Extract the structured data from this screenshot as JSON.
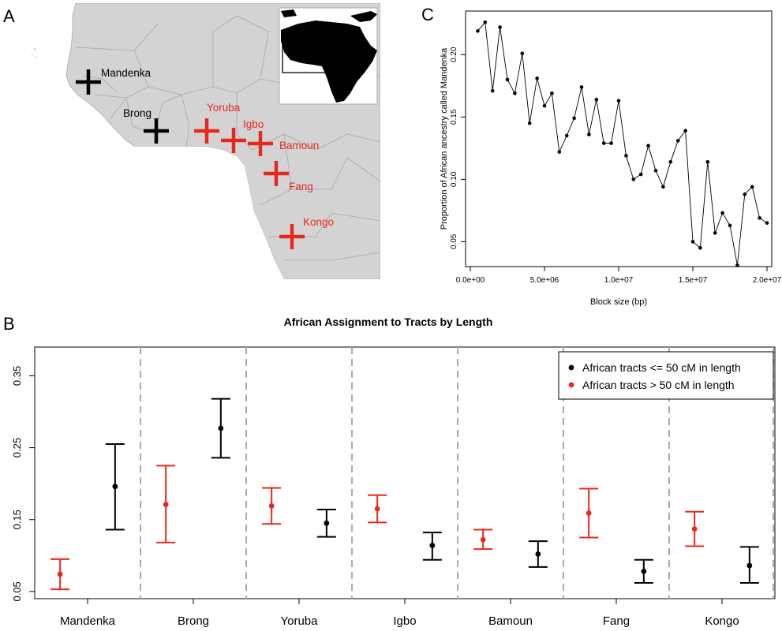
{
  "panel_labels": {
    "a": "A",
    "b": "B",
    "c": "C"
  },
  "colors": {
    "black": "#000000",
    "red": "#e8281e",
    "map_land": "#d3d3d3",
    "map_border": "#a8a8a8",
    "grid_dash": "#aaaaaa",
    "inset_land": "#000000"
  },
  "map": {
    "markers": [
      {
        "name": "Mandenka",
        "color": "black"
      },
      {
        "name": "Brong",
        "color": "black"
      },
      {
        "name": "Yoruba",
        "color": "red"
      },
      {
        "name": "Igbo",
        "color": "red"
      },
      {
        "name": "Bamoun",
        "color": "red"
      },
      {
        "name": "Fang",
        "color": "red"
      },
      {
        "name": "Kongo",
        "color": "red"
      }
    ]
  },
  "chart_data": [
    {
      "panel": "C",
      "type": "line",
      "title": "",
      "xlabel": "Block size (bp)",
      "ylabel": "Proportion of African ancestry called Mandenka",
      "xlim": [
        0,
        20000000
      ],
      "ylim": [
        0.03,
        0.235
      ],
      "xticks": [
        0,
        5000000,
        10000000,
        15000000,
        20000000
      ],
      "xtick_labels": [
        "0.0e+00",
        "5.0e+06",
        "1.0e+07",
        "1.5e+07",
        "2.0e+07"
      ],
      "yticks": [
        0.05,
        0.1,
        0.15,
        0.2
      ],
      "ytick_labels": [
        "0.05",
        "0.10",
        "0.15",
        "0.20"
      ],
      "grid": false,
      "x": [
        500000,
        1000000,
        1500000,
        2000000,
        2500000,
        3000000,
        3500000,
        4000000,
        4500000,
        5000000,
        5500000,
        6000000,
        6500000,
        7000000,
        7500000,
        8000000,
        8500000,
        9000000,
        9500000,
        10000000,
        10500000,
        11000000,
        11500000,
        12000000,
        12500000,
        13000000,
        13500000,
        14000000,
        14500000,
        15000000,
        15500000,
        16000000,
        16500000,
        17000000,
        17500000,
        18000000,
        18500000,
        19000000,
        19500000,
        20000000
      ],
      "y": [
        0.219,
        0.226,
        0.171,
        0.222,
        0.18,
        0.169,
        0.201,
        0.145,
        0.181,
        0.159,
        0.169,
        0.122,
        0.135,
        0.149,
        0.174,
        0.136,
        0.164,
        0.129,
        0.129,
        0.163,
        0.119,
        0.1,
        0.104,
        0.127,
        0.107,
        0.094,
        0.114,
        0.131,
        0.139,
        0.05,
        0.045,
        0.114,
        0.057,
        0.073,
        0.063,
        0.031,
        0.088,
        0.094,
        0.069,
        0.065
      ]
    },
    {
      "panel": "B",
      "type": "scatter",
      "title": "African Assignment to Tracts by Length",
      "xlabel": "",
      "ylabel": "",
      "ylim": [
        0.04,
        0.39
      ],
      "yticks": [
        0.05,
        0.15,
        0.25,
        0.35
      ],
      "ytick_labels": [
        "0.05",
        "0.15",
        "0.25",
        "0.35"
      ],
      "categories": [
        "Mandenka",
        "Brong",
        "Yoruba",
        "Igbo",
        "Bamoun",
        "Fang",
        "Kongo"
      ],
      "legend_placement": "top-right",
      "series": [
        {
          "name": "African tracts <= 50 cM in length",
          "color": "black",
          "values": [
            0.196,
            0.277,
            0.145,
            0.114,
            0.102,
            0.078,
            0.086
          ],
          "lower": [
            0.136,
            0.236,
            0.126,
            0.094,
            0.084,
            0.062,
            0.062
          ],
          "upper": [
            0.255,
            0.318,
            0.164,
            0.132,
            0.12,
            0.094,
            0.112
          ]
        },
        {
          "name": "African tracts > 50 cM in length",
          "color": "red",
          "values": [
            0.074,
            0.171,
            0.169,
            0.165,
            0.122,
            0.159,
            0.137
          ],
          "lower": [
            0.053,
            0.118,
            0.144,
            0.146,
            0.109,
            0.125,
            0.113
          ],
          "upper": [
            0.095,
            0.225,
            0.194,
            0.184,
            0.136,
            0.193,
            0.161
          ]
        }
      ]
    }
  ]
}
